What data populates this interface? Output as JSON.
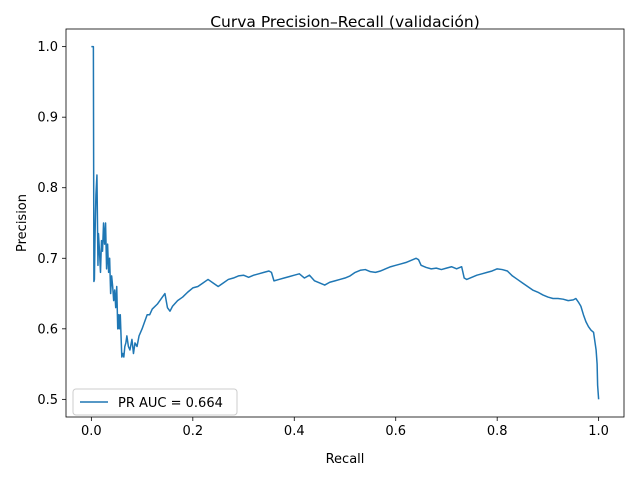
{
  "chart_data": {
    "type": "line",
    "title": "Curva Precision–Recall (validación)",
    "xlabel": "Recall",
    "ylabel": "Precision",
    "xlim": [
      -0.05,
      1.05
    ],
    "ylim": [
      0.475,
      1.025
    ],
    "xticks": [
      0.0,
      0.2,
      0.4,
      0.6,
      0.8,
      1.0
    ],
    "xtick_labels": [
      "0.0",
      "0.2",
      "0.4",
      "0.6",
      "0.8",
      "1.0"
    ],
    "yticks": [
      0.5,
      0.6,
      0.7,
      0.8,
      0.9,
      1.0
    ],
    "ytick_labels": [
      "0.5",
      "0.6",
      "0.7",
      "0.8",
      "0.9",
      "1.0"
    ],
    "grid": false,
    "legend_position": "lower-left",
    "series": [
      {
        "name": "PR AUC = 0.664",
        "color": "#1f77b4",
        "x": [
          0.0,
          0.004,
          0.004,
          0.005,
          0.006,
          0.007,
          0.008,
          0.009,
          0.011,
          0.013,
          0.014,
          0.016,
          0.018,
          0.02,
          0.022,
          0.024,
          0.026,
          0.028,
          0.03,
          0.032,
          0.034,
          0.036,
          0.038,
          0.04,
          0.042,
          0.044,
          0.046,
          0.048,
          0.05,
          0.052,
          0.054,
          0.055,
          0.057,
          0.058,
          0.06,
          0.062,
          0.064,
          0.066,
          0.068,
          0.07,
          0.073,
          0.076,
          0.08,
          0.083,
          0.086,
          0.09,
          0.094,
          0.1,
          0.105,
          0.11,
          0.115,
          0.12,
          0.13,
          0.14,
          0.145,
          0.15,
          0.155,
          0.16,
          0.17,
          0.18,
          0.19,
          0.2,
          0.21,
          0.22,
          0.23,
          0.24,
          0.25,
          0.26,
          0.27,
          0.28,
          0.29,
          0.3,
          0.31,
          0.32,
          0.33,
          0.34,
          0.35,
          0.355,
          0.36,
          0.37,
          0.38,
          0.39,
          0.4,
          0.41,
          0.42,
          0.43,
          0.44,
          0.45,
          0.46,
          0.47,
          0.48,
          0.49,
          0.5,
          0.51,
          0.52,
          0.53,
          0.54,
          0.55,
          0.56,
          0.57,
          0.58,
          0.59,
          0.6,
          0.61,
          0.62,
          0.63,
          0.64,
          0.645,
          0.65,
          0.66,
          0.67,
          0.68,
          0.69,
          0.7,
          0.71,
          0.72,
          0.73,
          0.735,
          0.74,
          0.75,
          0.76,
          0.77,
          0.78,
          0.79,
          0.8,
          0.81,
          0.82,
          0.83,
          0.84,
          0.85,
          0.86,
          0.87,
          0.88,
          0.89,
          0.9,
          0.91,
          0.92,
          0.93,
          0.94,
          0.95,
          0.955,
          0.96,
          0.965,
          0.97,
          0.975,
          0.98,
          0.985,
          0.99,
          0.993,
          0.995,
          0.997,
          0.998,
          0.999,
          1.0
        ],
        "y": [
          1.0,
          1.0,
          0.995,
          0.667,
          0.67,
          0.72,
          0.76,
          0.79,
          0.818,
          0.69,
          0.735,
          0.71,
          0.68,
          0.725,
          0.71,
          0.75,
          0.72,
          0.75,
          0.685,
          0.72,
          0.68,
          0.7,
          0.65,
          0.675,
          0.66,
          0.64,
          0.655,
          0.63,
          0.66,
          0.6,
          0.62,
          0.6,
          0.62,
          0.6,
          0.56,
          0.565,
          0.56,
          0.575,
          0.58,
          0.59,
          0.575,
          0.57,
          0.585,
          0.565,
          0.58,
          0.575,
          0.59,
          0.6,
          0.61,
          0.62,
          0.62,
          0.628,
          0.635,
          0.645,
          0.65,
          0.63,
          0.625,
          0.632,
          0.64,
          0.645,
          0.652,
          0.658,
          0.66,
          0.665,
          0.67,
          0.665,
          0.66,
          0.665,
          0.67,
          0.672,
          0.675,
          0.676,
          0.673,
          0.676,
          0.678,
          0.68,
          0.682,
          0.68,
          0.668,
          0.67,
          0.672,
          0.674,
          0.676,
          0.678,
          0.672,
          0.676,
          0.668,
          0.665,
          0.662,
          0.666,
          0.668,
          0.67,
          0.672,
          0.675,
          0.68,
          0.683,
          0.684,
          0.681,
          0.68,
          0.682,
          0.685,
          0.688,
          0.69,
          0.692,
          0.694,
          0.697,
          0.7,
          0.698,
          0.69,
          0.687,
          0.685,
          0.686,
          0.684,
          0.686,
          0.688,
          0.685,
          0.688,
          0.672,
          0.67,
          0.673,
          0.676,
          0.678,
          0.68,
          0.682,
          0.685,
          0.684,
          0.682,
          0.675,
          0.67,
          0.665,
          0.66,
          0.655,
          0.652,
          0.648,
          0.645,
          0.643,
          0.643,
          0.642,
          0.64,
          0.641,
          0.643,
          0.638,
          0.632,
          0.62,
          0.61,
          0.603,
          0.598,
          0.595,
          0.58,
          0.57,
          0.55,
          0.52,
          0.51,
          0.5
        ]
      }
    ]
  }
}
